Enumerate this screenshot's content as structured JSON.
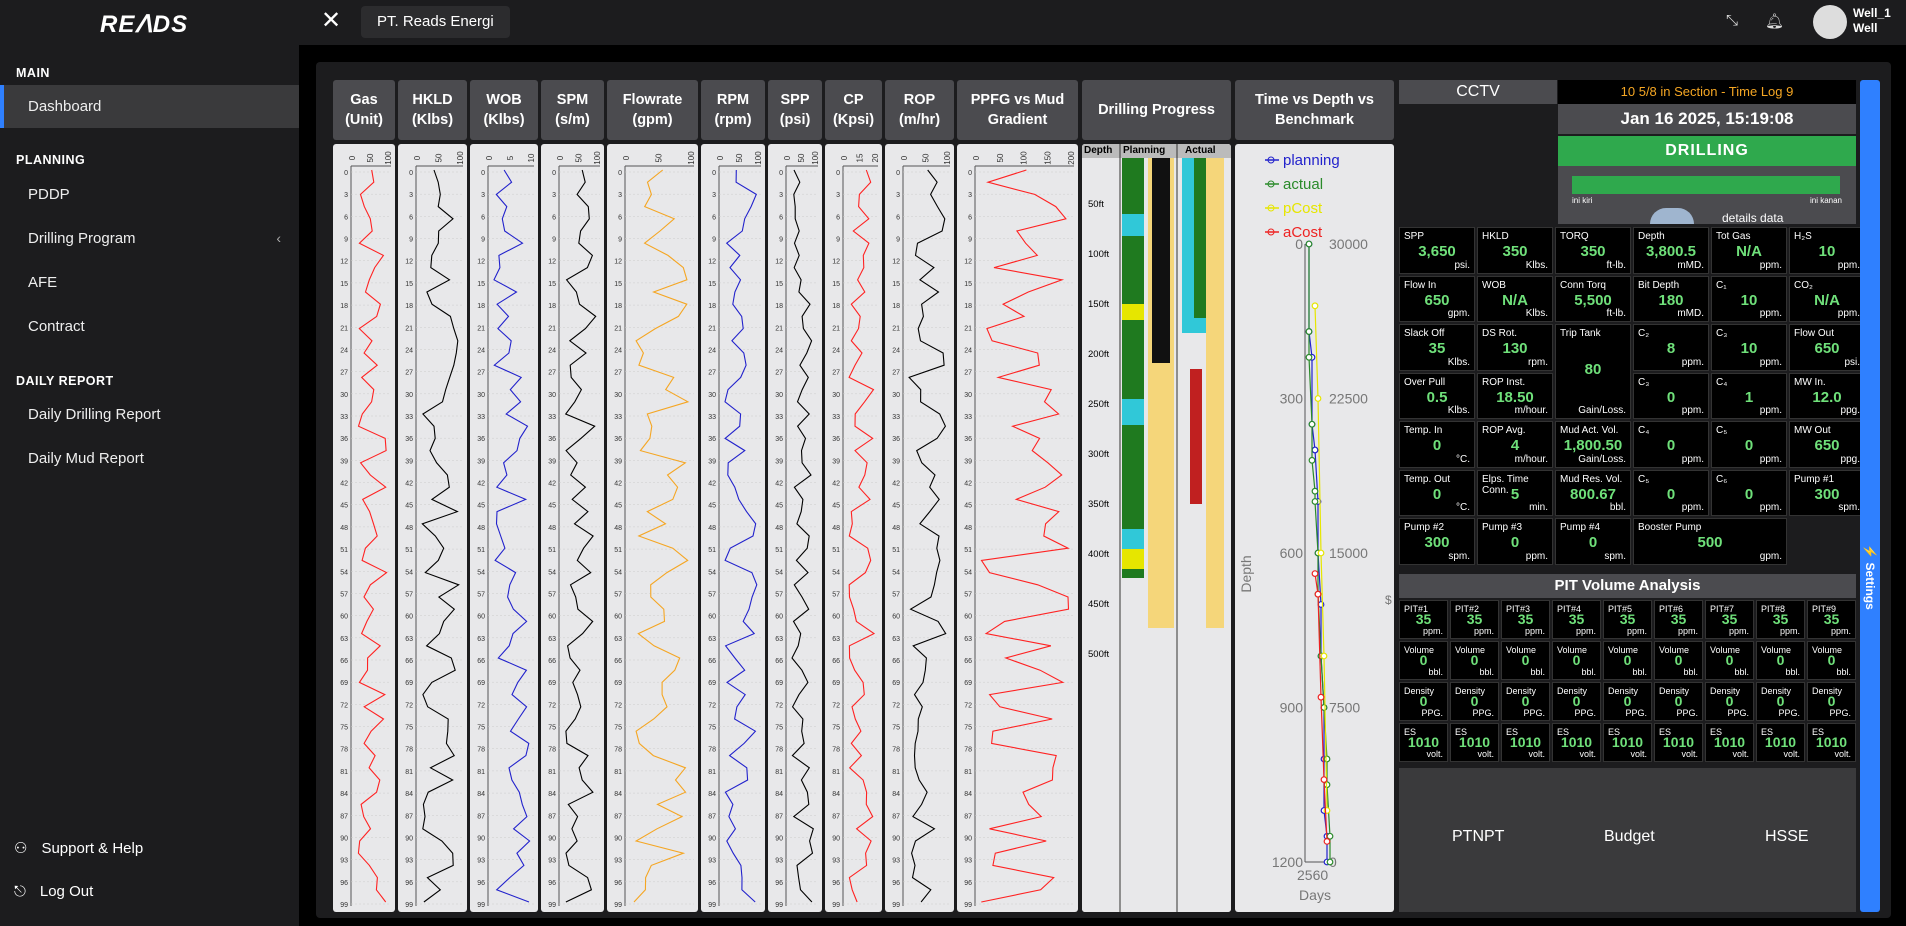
{
  "app": {
    "logo": "REᐱDS"
  },
  "sidebar": {
    "sections": [
      {
        "label": "MAIN"
      },
      {
        "label": "PLANNING"
      },
      {
        "label": "DAILY REPORT"
      }
    ],
    "items": [
      {
        "label": "Dashboard"
      },
      {
        "label": "PDDP"
      },
      {
        "label": "Drilling Program"
      },
      {
        "label": "AFE"
      },
      {
        "label": "Contract"
      },
      {
        "label": "Daily Drilling Report"
      },
      {
        "label": "Daily Mud Report"
      }
    ],
    "footer": [
      {
        "label": "Support & Help"
      },
      {
        "label": "Log Out"
      }
    ]
  },
  "topbar": {
    "tab": "PT. Reads Energi",
    "user_name": "Well_1",
    "user_role": "Well"
  },
  "logs": [
    {
      "title": "Gas\n(Unit)",
      "scale": [
        "0",
        "50",
        "100"
      ],
      "color": "#ff2222"
    },
    {
      "title": "HKLD\n(Klbs)",
      "scale": [
        "0",
        "50",
        "100"
      ],
      "color": "#000000"
    },
    {
      "title": "WOB\n(Klbs)",
      "scale": [
        "0",
        "5",
        "10"
      ],
      "color": "#2222cc"
    },
    {
      "title": "SPM\n(s/m)",
      "scale": [
        "0",
        "50",
        "100"
      ],
      "color": "#000000"
    },
    {
      "title": "Flowrate\n(gpm)",
      "scale": [
        "0",
        "50",
        "100"
      ],
      "color": "#f5a623"
    },
    {
      "title": "RPM\n(rpm)",
      "scale": [
        "0",
        "50",
        "100"
      ],
      "color": "#2222cc"
    },
    {
      "title": "SPP\n(psi)",
      "scale": [
        "0",
        "50",
        "100"
      ],
      "color": "#000000"
    },
    {
      "title": "CP\n(Kpsi)",
      "scale": [
        "0",
        "15",
        "20"
      ],
      "color": "#ff2222"
    },
    {
      "title": "ROP\n(m/hr)",
      "scale": [
        "0",
        "50",
        "100"
      ],
      "color": "#000000"
    },
    {
      "title": "PPFG vs Mud\nGradient",
      "scale": [
        "0",
        "50",
        "100",
        "150",
        "200"
      ],
      "color": "#ff2222"
    }
  ],
  "depth_ticks": [
    "0",
    "3",
    "6",
    "9",
    "12",
    "15",
    "18",
    "21",
    "24",
    "27",
    "30",
    "33",
    "36",
    "39",
    "42",
    "45",
    "48",
    "51",
    "54",
    "57",
    "60",
    "63",
    "66",
    "69",
    "72",
    "75",
    "78",
    "81",
    "84",
    "87",
    "90",
    "93",
    "96",
    "99"
  ],
  "drilling_progress": {
    "title": "Drilling Progress",
    "headers": [
      "Depth",
      "Planning",
      "Actual"
    ],
    "depths": [
      "50ft",
      "100ft",
      "150ft",
      "200ft",
      "250ft",
      "300ft",
      "350ft",
      "400ft",
      "450ft",
      "500ft"
    ]
  },
  "benchmark": {
    "title": "Time vs Depth vs\nBenchmark",
    "legend": [
      {
        "name": "planning",
        "color": "#2222cc"
      },
      {
        "name": "actual",
        "color": "#2a8a2a"
      },
      {
        "name": "pCost",
        "color": "#e6e600"
      },
      {
        "name": "aCost",
        "color": "#ee2222"
      }
    ],
    "y_ticks": [
      "0",
      "300",
      "600",
      "900",
      "1200"
    ],
    "y2_ticks": [
      "30000",
      "22500",
      "15000",
      "7500",
      "0"
    ],
    "x_ticks": [
      "2560"
    ],
    "ylabel": "Depth",
    "xlabel": "Days",
    "y2label": "$",
    "chart_data": {
      "type": "line",
      "ylim": [
        0,
        1200
      ],
      "y2lim": [
        0,
        30000
      ],
      "series": [
        {
          "name": "planning",
          "x": [
            0,
            0,
            1,
            1,
            2,
            2,
            3,
            3,
            4,
            4,
            5,
            5,
            5,
            6,
            6
          ],
          "y": [
            0,
            170,
            220,
            350,
            400,
            400,
            500,
            600,
            700,
            800,
            900,
            1000,
            1100,
            1150,
            1200
          ]
        },
        {
          "name": "actual",
          "x": [
            0,
            0,
            0,
            1,
            1,
            2,
            2,
            3,
            3,
            4,
            5,
            6,
            6,
            7,
            7
          ],
          "y": [
            0,
            170,
            220,
            350,
            420,
            480,
            500,
            600,
            680,
            800,
            900,
            1000,
            1050,
            1150,
            1200
          ]
        },
        {
          "name": "pCost",
          "x": [
            2,
            3,
            4,
            5,
            6
          ],
          "y": [
            27000,
            22500,
            15000,
            10000,
            2500
          ]
        },
        {
          "name": "aCost",
          "x": [
            2,
            3,
            4,
            5,
            6
          ],
          "y": [
            14000,
            13000,
            8000,
            4000,
            1000
          ]
        }
      ]
    }
  },
  "cctv": {
    "title": "CCTV"
  },
  "status": {
    "section": "10 5/8 in Section - Time Log 9",
    "datetime": "Jan 16 2025, 15:19:08",
    "state": "DRILLING",
    "left_label": "ini kiri",
    "right_label": "ini kanan",
    "details": "details data"
  },
  "sensors": [
    {
      "label": "SPP",
      "value": "3,650",
      "unit": "psi."
    },
    {
      "label": "HKLD",
      "value": "350",
      "unit": "Klbs."
    },
    {
      "label": "TORQ",
      "value": "350",
      "unit": "ft-lb."
    },
    {
      "label": "Depth",
      "value": "3,800.5",
      "unit": "mMD."
    },
    {
      "label": "Tot Gas",
      "value": "N/A",
      "unit": "ppm."
    },
    {
      "label": "H₂S",
      "value": "10",
      "unit": "ppm."
    },
    {
      "label": "Flow In",
      "value": "650",
      "unit": "gpm."
    },
    {
      "label": "WOB",
      "value": "N/A",
      "unit": "Klbs."
    },
    {
      "label": "Conn Torq",
      "value": "5,500",
      "unit": "ft-lb."
    },
    {
      "label": "Bit Depth",
      "value": "180",
      "unit": "mMD."
    },
    {
      "label": "C₁",
      "value": "10",
      "unit": "ppm."
    },
    {
      "label": "CO₂",
      "value": "N/A",
      "unit": "ppm."
    },
    {
      "label": "Slack Off",
      "value": "35",
      "unit": "Klbs."
    },
    {
      "label": "DS Rot.",
      "value": "130",
      "unit": "rpm."
    },
    {
      "label": "Trip Tank",
      "value": "80",
      "unit": "Gain/Loss."
    },
    {
      "label": "C₂",
      "value": "8",
      "unit": "ppm."
    },
    {
      "label": "C₃",
      "value": "10",
      "unit": "ppm."
    },
    {
      "label": "Flow Out",
      "value": "650",
      "unit": "psi."
    },
    {
      "label": "Over Pull",
      "value": "0.5",
      "unit": "Klbs."
    },
    {
      "label": "ROP Inst.",
      "value": "18.50",
      "unit": "m/hour."
    },
    {
      "label": "",
      "value": "",
      "unit": ""
    },
    {
      "label": "C₃",
      "value": "0",
      "unit": "ppm."
    },
    {
      "label": "C₄",
      "value": "1",
      "unit": "ppm."
    },
    {
      "label": "MW In.",
      "value": "12.0",
      "unit": "ppg."
    },
    {
      "label": "Temp. In",
      "value": "0",
      "unit": "°C."
    },
    {
      "label": "ROP Avg.",
      "value": "4",
      "unit": "m/hour."
    },
    {
      "label": "Mud Act. Vol.",
      "value": "1,800.50",
      "unit": "Gain/Loss."
    },
    {
      "label": "C₄",
      "value": "0",
      "unit": "ppm."
    },
    {
      "label": "C₅",
      "value": "0",
      "unit": "ppm."
    },
    {
      "label": "MW Out",
      "value": "650",
      "unit": "ppg."
    },
    {
      "label": "Temp. Out",
      "value": "0",
      "unit": "°C."
    },
    {
      "label": "Elps. Time Conn.",
      "value": "5",
      "unit": "min."
    },
    {
      "label": "Mud Res. Vol.",
      "value": "800.67",
      "unit": "bbl."
    },
    {
      "label": "C₅",
      "value": "0",
      "unit": "ppm."
    },
    {
      "label": "C₆",
      "value": "0",
      "unit": "ppm."
    },
    {
      "label": "Pump #1",
      "value": "300",
      "unit": "spm."
    },
    {
      "label": "Pump #2",
      "value": "300",
      "unit": "spm."
    },
    {
      "label": "Pump #3",
      "value": "0",
      "unit": "ppm."
    },
    {
      "label": "Pump #4",
      "value": "0",
      "unit": "spm."
    },
    {
      "label": "Booster Pump",
      "value": "500",
      "unit": "gpm."
    }
  ],
  "pit": {
    "title": "PIT Volume Analysis",
    "cells": [
      {
        "label": "PIT#1",
        "value": "35",
        "unit": "ppm."
      },
      {
        "label": "PIT#2",
        "value": "35",
        "unit": "ppm."
      },
      {
        "label": "PIT#3",
        "value": "35",
        "unit": "ppm."
      },
      {
        "label": "PIT#4",
        "value": "35",
        "unit": "ppm."
      },
      {
        "label": "PIT#5",
        "value": "35",
        "unit": "ppm."
      },
      {
        "label": "PIT#6",
        "value": "35",
        "unit": "ppm."
      },
      {
        "label": "PIT#7",
        "value": "35",
        "unit": "ppm."
      },
      {
        "label": "PIT#8",
        "value": "35",
        "unit": "ppm."
      },
      {
        "label": "PIT#9",
        "value": "35",
        "unit": "ppm."
      },
      {
        "label": "Volume",
        "value": "0",
        "unit": "bbl."
      },
      {
        "label": "Volume",
        "value": "0",
        "unit": "bbl."
      },
      {
        "label": "Volume",
        "value": "0",
        "unit": "bbl."
      },
      {
        "label": "Volume",
        "value": "0",
        "unit": "bbl."
      },
      {
        "label": "Volume",
        "value": "0",
        "unit": "bbl."
      },
      {
        "label": "Volume",
        "value": "0",
        "unit": "bbl."
      },
      {
        "label": "Volume",
        "value": "0",
        "unit": "bbl."
      },
      {
        "label": "Volume",
        "value": "0",
        "unit": "bbl."
      },
      {
        "label": "Volume",
        "value": "0",
        "unit": "bbl."
      },
      {
        "label": "Density",
        "value": "0",
        "unit": "PPG."
      },
      {
        "label": "Density",
        "value": "0",
        "unit": "PPG."
      },
      {
        "label": "Density",
        "value": "0",
        "unit": "PPG."
      },
      {
        "label": "Density",
        "value": "0",
        "unit": "PPG."
      },
      {
        "label": "Density",
        "value": "0",
        "unit": "PPG."
      },
      {
        "label": "Density",
        "value": "0",
        "unit": "PPG."
      },
      {
        "label": "Density",
        "value": "0",
        "unit": "PPG."
      },
      {
        "label": "Density",
        "value": "0",
        "unit": "PPG."
      },
      {
        "label": "Density",
        "value": "0",
        "unit": "PPG."
      },
      {
        "label": "ES",
        "value": "1010",
        "unit": "volt."
      },
      {
        "label": "ES",
        "value": "1010",
        "unit": "volt."
      },
      {
        "label": "ES",
        "value": "1010",
        "unit": "volt."
      },
      {
        "label": "ES",
        "value": "1010",
        "unit": "volt."
      },
      {
        "label": "ES",
        "value": "1010",
        "unit": "volt."
      },
      {
        "label": "ES",
        "value": "1010",
        "unit": "volt."
      },
      {
        "label": "ES",
        "value": "1010",
        "unit": "volt."
      },
      {
        "label": "ES",
        "value": "1010",
        "unit": "volt."
      },
      {
        "label": "ES",
        "value": "1010",
        "unit": "volt."
      }
    ]
  },
  "bottom": {
    "items": [
      "PTNPT",
      "Budget",
      "HSSE"
    ]
  },
  "settings": {
    "label": "⚡ Settings"
  }
}
